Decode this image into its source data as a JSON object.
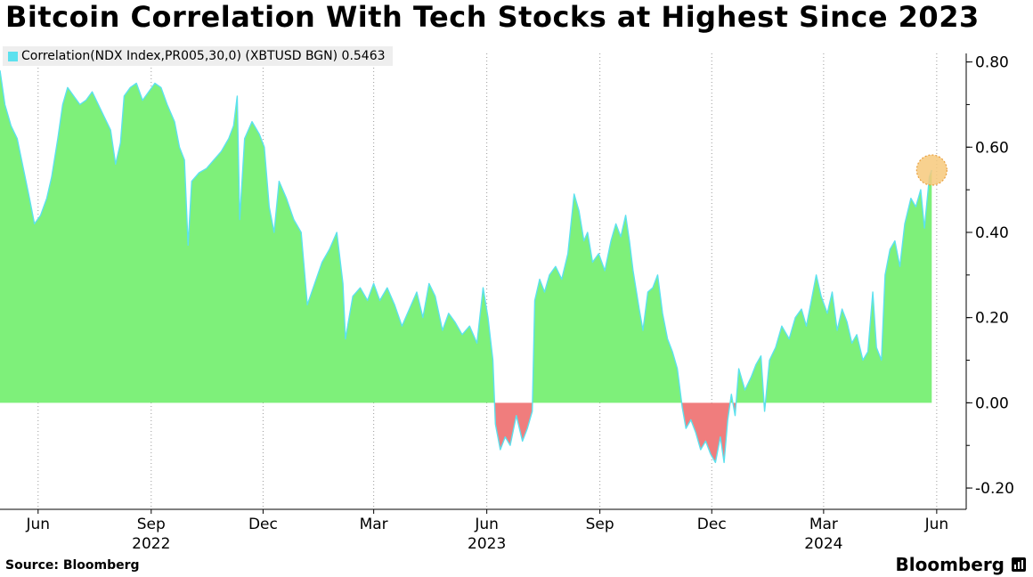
{
  "title": "Bitcoin Correlation With Tech Stocks at Highest Since 2023",
  "legend": {
    "label": "Correlation(NDX Index,PR005,30,0) (XBTUSD BGN) 0.5463"
  },
  "source": "Source: Bloomberg",
  "brand": "Bloomberg",
  "colors": {
    "line": "#5ce1ee",
    "positive_fill": "#7ef07a",
    "negative_fill": "#f07d7d",
    "marker": "#f7c97b"
  },
  "chart_data": {
    "type": "area",
    "title": "Bitcoin Correlation With Tech Stocks at Highest Since 2023",
    "xlabel": "",
    "ylabel": "",
    "ylim": [
      -0.25,
      0.82
    ],
    "yticks": [
      -0.2,
      0,
      0.2,
      0.4,
      0.6,
      0.8
    ],
    "ytick_labels": [
      "-0.20",
      "0.00",
      "0.20",
      "0.40",
      "0.60",
      "0.80"
    ],
    "xlim": [
      "2022-05-01",
      "2024-06-25"
    ],
    "xticks": [
      {
        "date": "2022-06-01",
        "label": "Jun",
        "year": ""
      },
      {
        "date": "2022-09-01",
        "label": "Sep",
        "year": "2022"
      },
      {
        "date": "2022-12-01",
        "label": "Dec",
        "year": ""
      },
      {
        "date": "2023-03-01",
        "label": "Mar",
        "year": ""
      },
      {
        "date": "2023-06-01",
        "label": "Jun",
        "year": "2023"
      },
      {
        "date": "2023-09-01",
        "label": "Sep",
        "year": ""
      },
      {
        "date": "2023-12-01",
        "label": "Dec",
        "year": ""
      },
      {
        "date": "2024-03-01",
        "label": "Mar",
        "year": "2024"
      },
      {
        "date": "2024-06-01",
        "label": "Jun",
        "year": ""
      }
    ],
    "grid": "vertical-dotted",
    "legend_position": "top-left",
    "series": [
      {
        "name": "Correlation(NDX Index,PR005,30,0) (XBTUSD BGN)",
        "last_value": 0.5463,
        "points": [
          [
            "2022-05-01",
            0.78
          ],
          [
            "2022-05-05",
            0.7
          ],
          [
            "2022-05-10",
            0.65
          ],
          [
            "2022-05-15",
            0.62
          ],
          [
            "2022-05-20",
            0.55
          ],
          [
            "2022-05-25",
            0.48
          ],
          [
            "2022-05-29",
            0.42
          ],
          [
            "2022-06-03",
            0.44
          ],
          [
            "2022-06-08",
            0.48
          ],
          [
            "2022-06-12",
            0.53
          ],
          [
            "2022-06-17",
            0.62
          ],
          [
            "2022-06-21",
            0.7
          ],
          [
            "2022-06-25",
            0.74
          ],
          [
            "2022-06-30",
            0.72
          ],
          [
            "2022-07-05",
            0.7
          ],
          [
            "2022-07-10",
            0.71
          ],
          [
            "2022-07-15",
            0.73
          ],
          [
            "2022-07-20",
            0.7
          ],
          [
            "2022-07-25",
            0.67
          ],
          [
            "2022-07-30",
            0.64
          ],
          [
            "2022-08-03",
            0.56
          ],
          [
            "2022-08-07",
            0.61
          ],
          [
            "2022-08-10",
            0.72
          ],
          [
            "2022-08-15",
            0.74
          ],
          [
            "2022-08-20",
            0.75
          ],
          [
            "2022-08-25",
            0.71
          ],
          [
            "2022-08-30",
            0.73
          ],
          [
            "2022-09-04",
            0.75
          ],
          [
            "2022-09-09",
            0.74
          ],
          [
            "2022-09-14",
            0.7
          ],
          [
            "2022-09-20",
            0.66
          ],
          [
            "2022-09-24",
            0.6
          ],
          [
            "2022-09-28",
            0.57
          ],
          [
            "2022-10-01",
            0.37
          ],
          [
            "2022-10-04",
            0.52
          ],
          [
            "2022-10-10",
            0.54
          ],
          [
            "2022-10-16",
            0.55
          ],
          [
            "2022-10-22",
            0.57
          ],
          [
            "2022-10-28",
            0.59
          ],
          [
            "2022-11-03",
            0.62
          ],
          [
            "2022-11-07",
            0.65
          ],
          [
            "2022-11-10",
            0.72
          ],
          [
            "2022-11-12",
            0.43
          ],
          [
            "2022-11-16",
            0.62
          ],
          [
            "2022-11-22",
            0.66
          ],
          [
            "2022-11-28",
            0.63
          ],
          [
            "2022-12-02",
            0.6
          ],
          [
            "2022-12-06",
            0.46
          ],
          [
            "2022-12-10",
            0.4
          ],
          [
            "2022-12-14",
            0.52
          ],
          [
            "2022-12-20",
            0.48
          ],
          [
            "2022-12-26",
            0.43
          ],
          [
            "2023-01-01",
            0.4
          ],
          [
            "2023-01-06",
            0.23
          ],
          [
            "2023-01-12",
            0.28
          ],
          [
            "2023-01-18",
            0.33
          ],
          [
            "2023-01-24",
            0.36
          ],
          [
            "2023-01-30",
            0.4
          ],
          [
            "2023-02-04",
            0.28
          ],
          [
            "2023-02-06",
            0.15
          ],
          [
            "2023-02-12",
            0.25
          ],
          [
            "2023-02-18",
            0.27
          ],
          [
            "2023-02-24",
            0.24
          ],
          [
            "2023-03-01",
            0.28
          ],
          [
            "2023-03-06",
            0.24
          ],
          [
            "2023-03-12",
            0.27
          ],
          [
            "2023-03-18",
            0.23
          ],
          [
            "2023-03-24",
            0.18
          ],
          [
            "2023-03-30",
            0.22
          ],
          [
            "2023-04-05",
            0.26
          ],
          [
            "2023-04-10",
            0.2
          ],
          [
            "2023-04-15",
            0.28
          ],
          [
            "2023-04-20",
            0.25
          ],
          [
            "2023-04-26",
            0.17
          ],
          [
            "2023-05-01",
            0.21
          ],
          [
            "2023-05-06",
            0.19
          ],
          [
            "2023-05-12",
            0.16
          ],
          [
            "2023-05-18",
            0.18
          ],
          [
            "2023-05-24",
            0.14
          ],
          [
            "2023-05-29",
            0.27
          ],
          [
            "2023-06-02",
            0.2
          ],
          [
            "2023-06-06",
            0.1
          ],
          [
            "2023-06-08",
            -0.05
          ],
          [
            "2023-06-12",
            -0.11
          ],
          [
            "2023-06-16",
            -0.08
          ],
          [
            "2023-06-20",
            -0.1
          ],
          [
            "2023-06-25",
            -0.03
          ],
          [
            "2023-06-30",
            -0.09
          ],
          [
            "2023-07-04",
            -0.06
          ],
          [
            "2023-07-08",
            -0.02
          ],
          [
            "2023-07-10",
            0.24
          ],
          [
            "2023-07-14",
            0.29
          ],
          [
            "2023-07-18",
            0.26
          ],
          [
            "2023-07-22",
            0.3
          ],
          [
            "2023-07-27",
            0.32
          ],
          [
            "2023-08-01",
            0.29
          ],
          [
            "2023-08-06",
            0.35
          ],
          [
            "2023-08-11",
            0.49
          ],
          [
            "2023-08-15",
            0.45
          ],
          [
            "2023-08-19",
            0.38
          ],
          [
            "2023-08-22",
            0.4
          ],
          [
            "2023-08-26",
            0.33
          ],
          [
            "2023-08-31",
            0.35
          ],
          [
            "2023-09-05",
            0.31
          ],
          [
            "2023-09-10",
            0.38
          ],
          [
            "2023-09-14",
            0.42
          ],
          [
            "2023-09-18",
            0.39
          ],
          [
            "2023-09-22",
            0.44
          ],
          [
            "2023-09-25",
            0.38
          ],
          [
            "2023-09-28",
            0.31
          ],
          [
            "2023-10-03",
            0.22
          ],
          [
            "2023-10-06",
            0.17
          ],
          [
            "2023-10-10",
            0.26
          ],
          [
            "2023-10-14",
            0.27
          ],
          [
            "2023-10-18",
            0.3
          ],
          [
            "2023-10-22",
            0.21
          ],
          [
            "2023-10-26",
            0.15
          ],
          [
            "2023-10-30",
            0.12
          ],
          [
            "2023-11-03",
            0.08
          ],
          [
            "2023-11-07",
            -0.01
          ],
          [
            "2023-11-10",
            -0.06
          ],
          [
            "2023-11-14",
            -0.04
          ],
          [
            "2023-11-18",
            -0.07
          ],
          [
            "2023-11-22",
            -0.11
          ],
          [
            "2023-11-26",
            -0.09
          ],
          [
            "2023-11-30",
            -0.12
          ],
          [
            "2023-12-04",
            -0.14
          ],
          [
            "2023-12-08",
            -0.08
          ],
          [
            "2023-12-11",
            -0.14
          ],
          [
            "2023-12-14",
            -0.04
          ],
          [
            "2023-12-17",
            0.02
          ],
          [
            "2023-12-20",
            -0.03
          ],
          [
            "2023-12-23",
            0.08
          ],
          [
            "2023-12-28",
            0.03
          ],
          [
            "2024-01-02",
            0.06
          ],
          [
            "2024-01-06",
            0.09
          ],
          [
            "2024-01-10",
            0.11
          ],
          [
            "2024-01-13",
            -0.02
          ],
          [
            "2024-01-17",
            0.1
          ],
          [
            "2024-01-22",
            0.13
          ],
          [
            "2024-01-27",
            0.18
          ],
          [
            "2024-02-02",
            0.15
          ],
          [
            "2024-02-07",
            0.2
          ],
          [
            "2024-02-12",
            0.22
          ],
          [
            "2024-02-16",
            0.18
          ],
          [
            "2024-02-20",
            0.24
          ],
          [
            "2024-02-24",
            0.3
          ],
          [
            "2024-02-28",
            0.25
          ],
          [
            "2024-03-04",
            0.21
          ],
          [
            "2024-03-08",
            0.26
          ],
          [
            "2024-03-12",
            0.17
          ],
          [
            "2024-03-16",
            0.22
          ],
          [
            "2024-03-20",
            0.19
          ],
          [
            "2024-03-24",
            0.14
          ],
          [
            "2024-03-28",
            0.16
          ],
          [
            "2024-04-02",
            0.1
          ],
          [
            "2024-04-06",
            0.12
          ],
          [
            "2024-04-10",
            0.26
          ],
          [
            "2024-04-13",
            0.13
          ],
          [
            "2024-04-17",
            0.1
          ],
          [
            "2024-04-20",
            0.3
          ],
          [
            "2024-04-24",
            0.36
          ],
          [
            "2024-04-28",
            0.38
          ],
          [
            "2024-05-02",
            0.32
          ],
          [
            "2024-05-06",
            0.42
          ],
          [
            "2024-05-11",
            0.48
          ],
          [
            "2024-05-15",
            0.46
          ],
          [
            "2024-05-19",
            0.5
          ],
          [
            "2024-05-22",
            0.41
          ],
          [
            "2024-05-26",
            0.53
          ],
          [
            "2024-05-28",
            0.5463
          ]
        ]
      }
    ],
    "highlight": {
      "date": "2024-05-28",
      "value": 0.5463
    }
  }
}
